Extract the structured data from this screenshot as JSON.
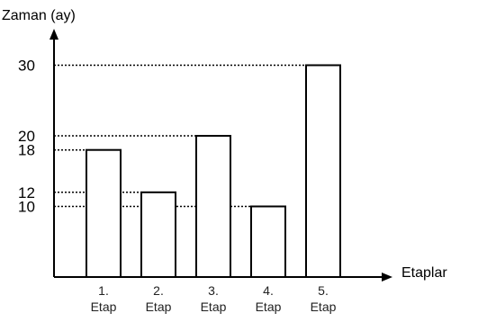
{
  "chart_data": {
    "type": "bar",
    "title": "",
    "ylabel": "Zaman (ay)",
    "xlabel": "Etaplar",
    "categories": [
      [
        "1.",
        "Etap"
      ],
      [
        "2.",
        "Etap"
      ],
      [
        "3.",
        "Etap"
      ],
      [
        "4.",
        "Etap"
      ],
      [
        "5.",
        "Etap"
      ]
    ],
    "values": [
      18,
      12,
      20,
      10,
      30
    ],
    "yticks": [
      "10",
      "12",
      "18",
      "20",
      "30"
    ],
    "ylim": [
      0,
      30
    ],
    "grid": false,
    "guide_lines": "dotted",
    "legend": "none",
    "colors": {
      "bar_fill": "#ffffff",
      "bar_stroke": "#000000",
      "axis": "#000000",
      "guide": "#000000"
    }
  }
}
